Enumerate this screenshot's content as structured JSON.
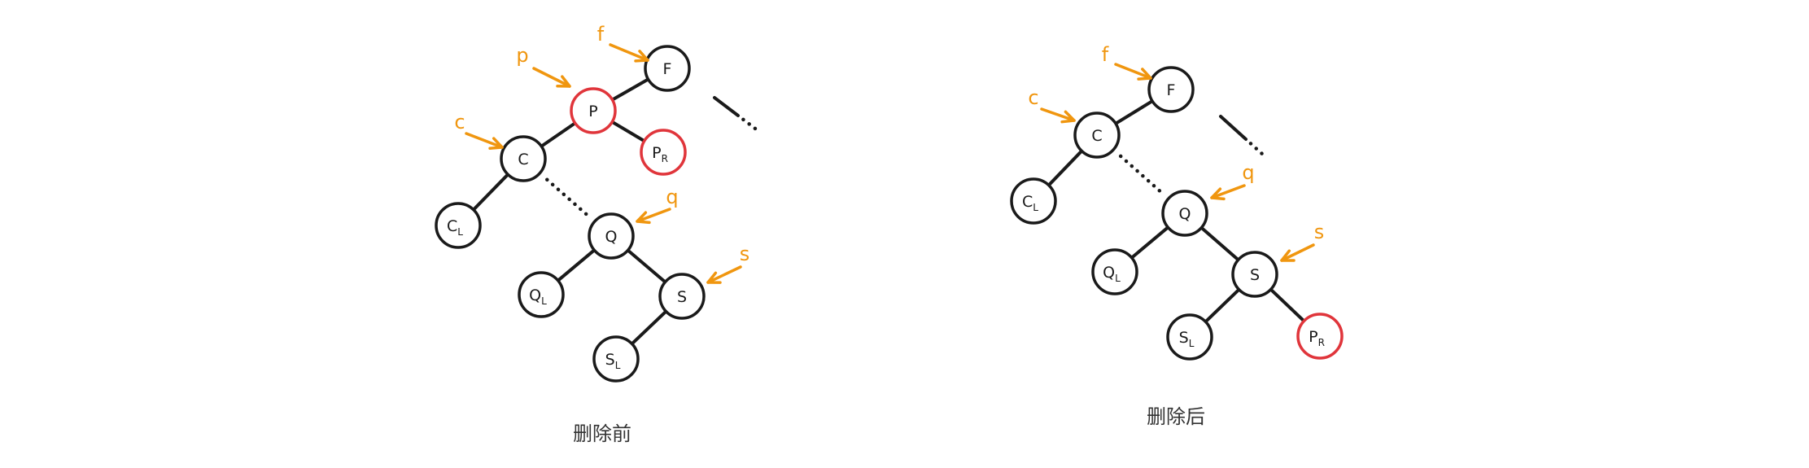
{
  "diagrams": [
    {
      "caption": "删除前",
      "nodes": [
        {
          "id": "F",
          "base": "F",
          "sub": "",
          "highlight": false
        },
        {
          "id": "P",
          "base": "P",
          "sub": "",
          "highlight": true
        },
        {
          "id": "PR",
          "base": "P",
          "sub": "R",
          "highlight": true
        },
        {
          "id": "C",
          "base": "C",
          "sub": "",
          "highlight": false
        },
        {
          "id": "CL",
          "base": "C",
          "sub": "L",
          "highlight": false
        },
        {
          "id": "Q",
          "base": "Q",
          "sub": "",
          "highlight": false
        },
        {
          "id": "QL",
          "base": "Q",
          "sub": "L",
          "highlight": false
        },
        {
          "id": "S",
          "base": "S",
          "sub": "",
          "highlight": false
        },
        {
          "id": "SL",
          "base": "S",
          "sub": "L",
          "highlight": false
        }
      ],
      "edges": [
        [
          "F",
          "P"
        ],
        [
          "P",
          "PR"
        ],
        [
          "P",
          "C"
        ],
        [
          "C",
          "CL"
        ],
        [
          "Q",
          "QL"
        ],
        [
          "Q",
          "S"
        ],
        [
          "S",
          "SL"
        ]
      ],
      "dotted_edges": [
        [
          "C",
          "Q"
        ]
      ],
      "pointers": [
        {
          "label": "f",
          "target": "F"
        },
        {
          "label": "p",
          "target": "P"
        },
        {
          "label": "c",
          "target": "C"
        },
        {
          "label": "q",
          "target": "Q"
        },
        {
          "label": "s",
          "target": "S"
        }
      ]
    },
    {
      "caption": "删除后",
      "nodes": [
        {
          "id": "F",
          "base": "F",
          "sub": "",
          "highlight": false
        },
        {
          "id": "C",
          "base": "C",
          "sub": "",
          "highlight": false
        },
        {
          "id": "CL",
          "base": "C",
          "sub": "L",
          "highlight": false
        },
        {
          "id": "Q",
          "base": "Q",
          "sub": "",
          "highlight": false
        },
        {
          "id": "QL",
          "base": "Q",
          "sub": "L",
          "highlight": false
        },
        {
          "id": "S",
          "base": "S",
          "sub": "",
          "highlight": false
        },
        {
          "id": "SL",
          "base": "S",
          "sub": "L",
          "highlight": false
        },
        {
          "id": "PR",
          "base": "P",
          "sub": "R",
          "highlight": true
        }
      ],
      "edges": [
        [
          "F",
          "C"
        ],
        [
          "C",
          "CL"
        ],
        [
          "Q",
          "QL"
        ],
        [
          "Q",
          "S"
        ],
        [
          "S",
          "SL"
        ],
        [
          "S",
          "PR"
        ]
      ],
      "dotted_edges": [
        [
          "C",
          "Q"
        ]
      ],
      "pointers": [
        {
          "label": "f",
          "target": "F"
        },
        {
          "label": "c",
          "target": "C"
        },
        {
          "label": "q",
          "target": "Q"
        },
        {
          "label": "s",
          "target": "S"
        }
      ]
    }
  ]
}
